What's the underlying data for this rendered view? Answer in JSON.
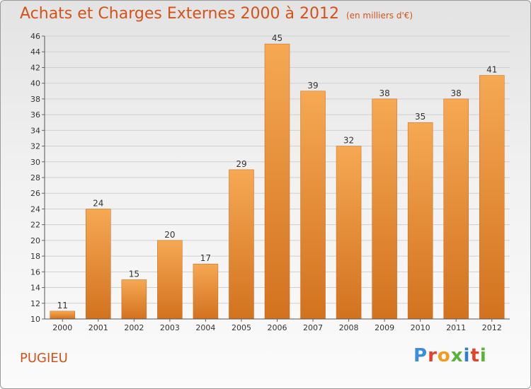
{
  "header": {
    "title": "Achats et Charges Externes 2000 à 2012",
    "unit": "(en milliers d'€)"
  },
  "footer": {
    "commune": "PUGIEU",
    "logo_letters": [
      "P",
      "r",
      "o",
      "x",
      "i",
      "t",
      "i"
    ]
  },
  "colors": {
    "title": "#d4521a",
    "bar_top": "#f6a853",
    "bar_bottom": "#d2721f",
    "logo": [
      "#3a8fd6",
      "#e5422b",
      "#f29c1f",
      "#59b43b",
      "#2f7fd1",
      "#e5422b",
      "#59b43b"
    ]
  },
  "chart_data": {
    "type": "bar",
    "title": "Achats et Charges Externes 2000 à 2012",
    "subtitle": "(en milliers d'€)",
    "categories": [
      "2000",
      "2001",
      "2002",
      "2003",
      "2004",
      "2005",
      "2006",
      "2007",
      "2008",
      "2009",
      "2010",
      "2011",
      "2012"
    ],
    "values": [
      11,
      24,
      15,
      20,
      17,
      29,
      45,
      39,
      32,
      38,
      35,
      38,
      41
    ],
    "ylim": [
      10,
      46
    ],
    "yticks": [
      10,
      12,
      14,
      16,
      18,
      20,
      22,
      24,
      26,
      28,
      30,
      32,
      34,
      36,
      38,
      40,
      42,
      44,
      46
    ],
    "grid": true,
    "xlabel": "",
    "ylabel": ""
  }
}
